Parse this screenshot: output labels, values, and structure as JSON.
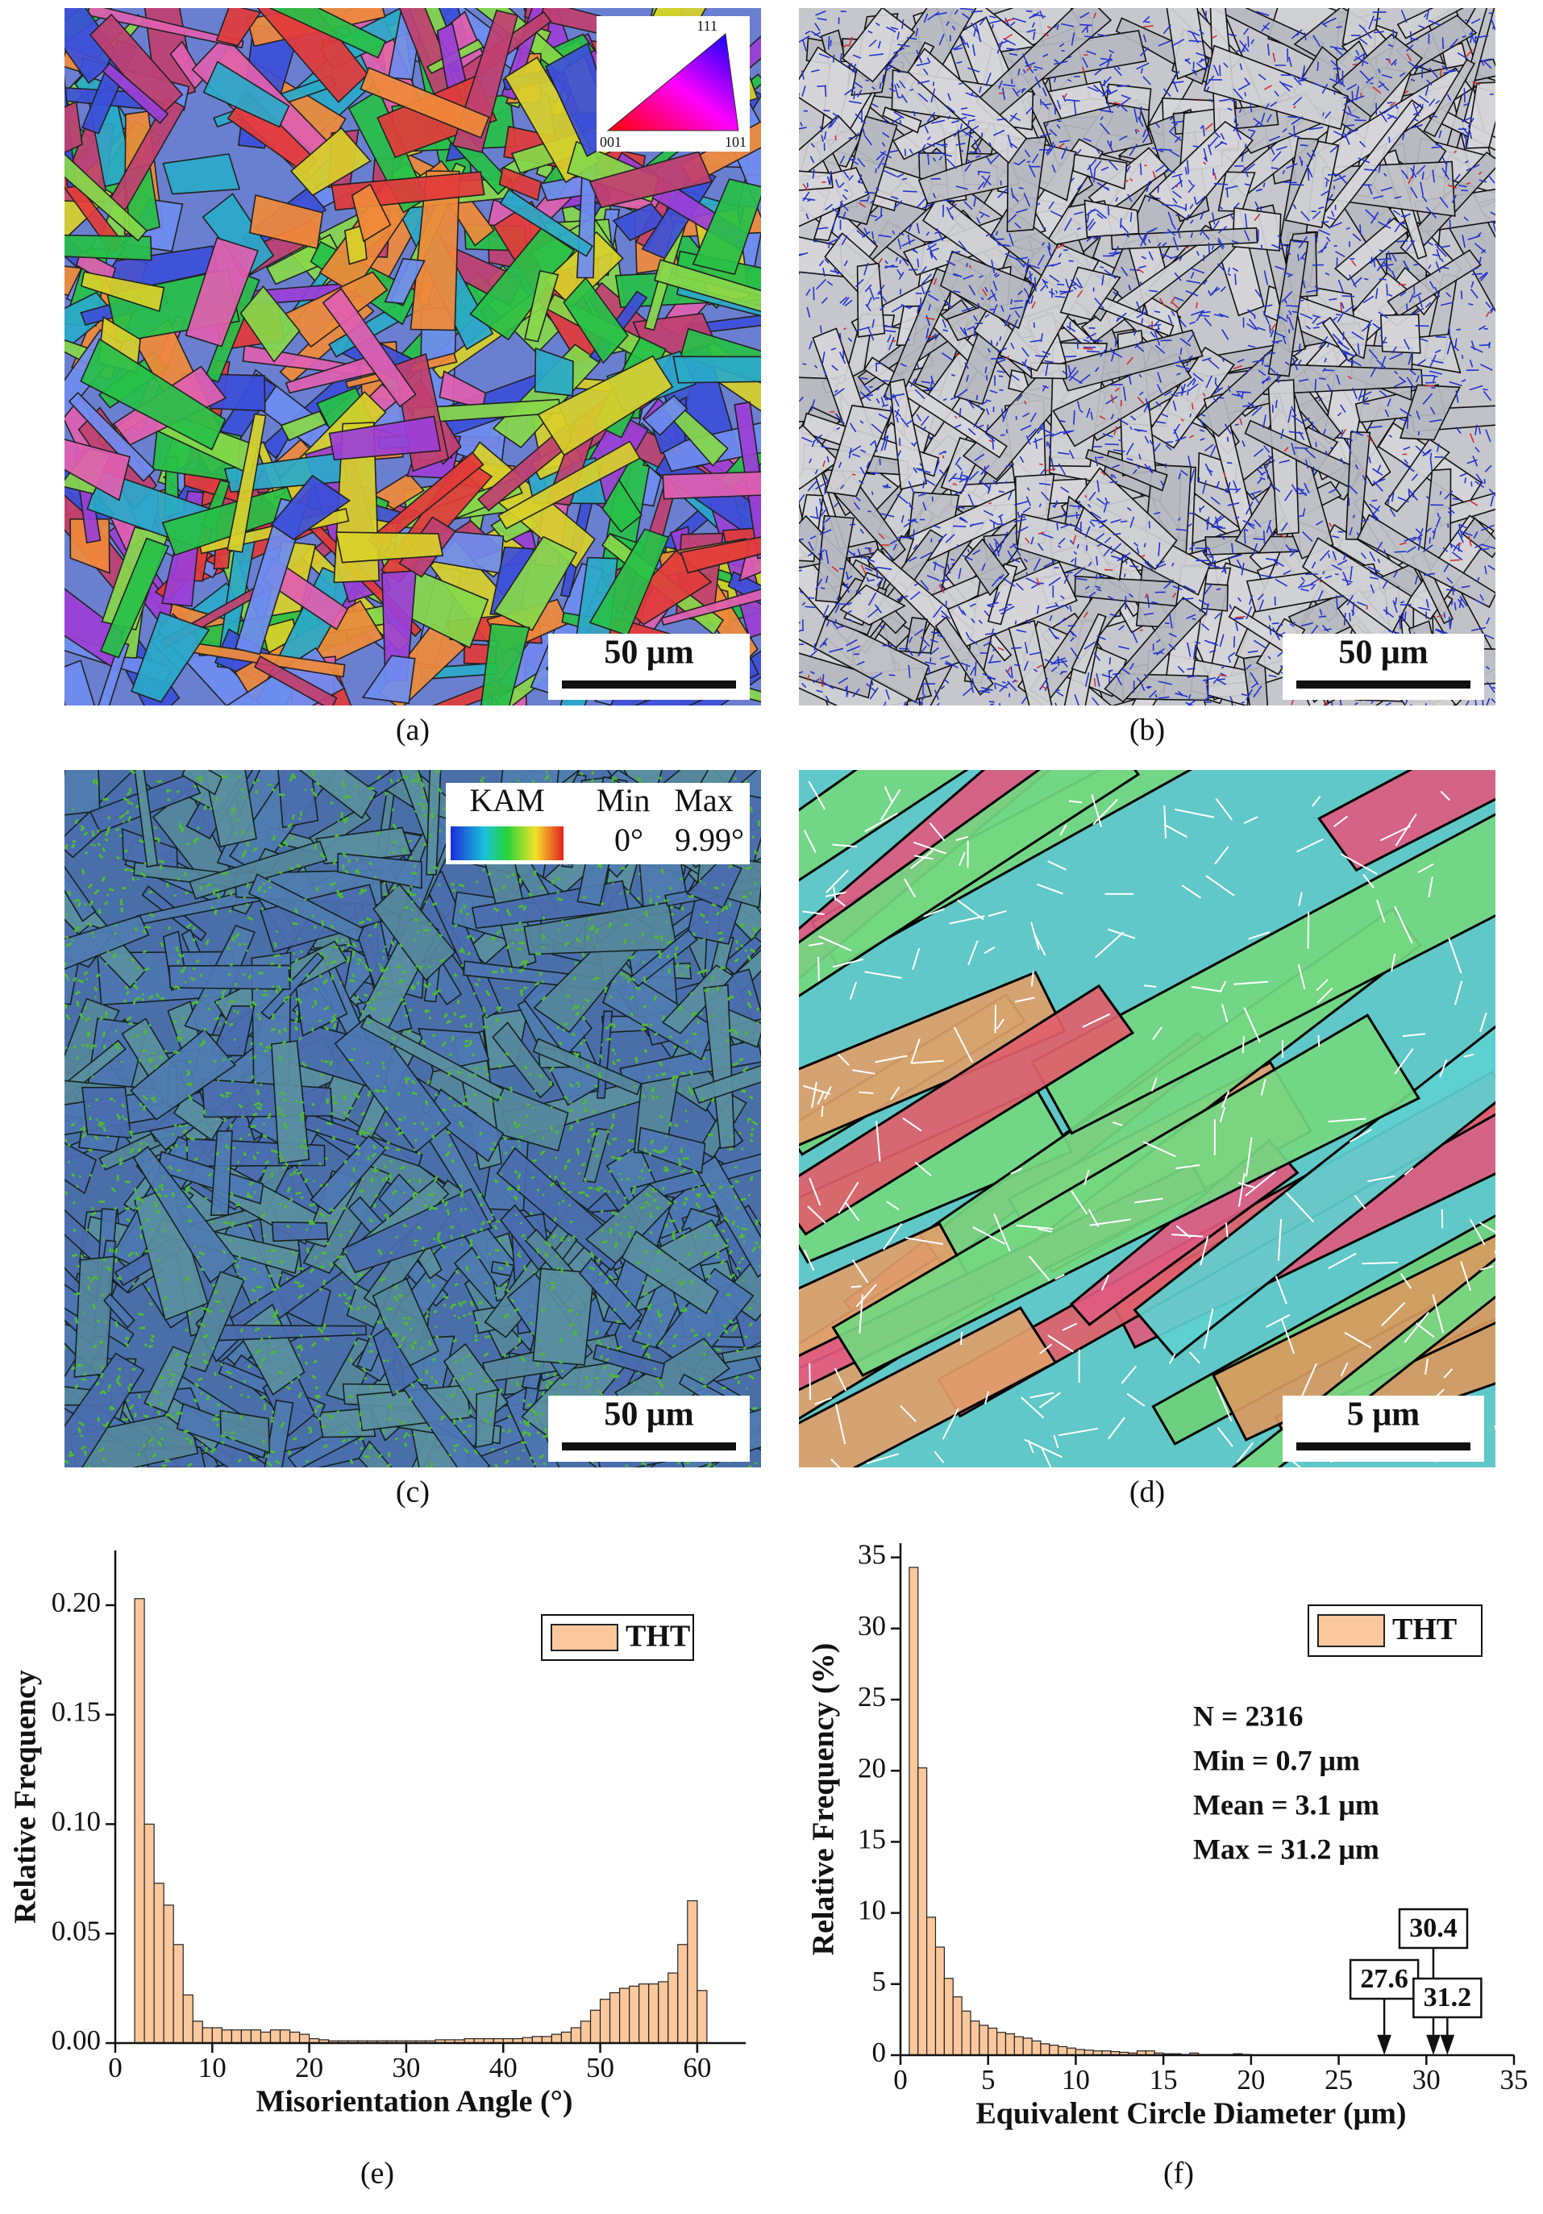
{
  "panels": [
    {
      "label": "(a)",
      "scale_bar": "50 μm",
      "ipf_legend": [
        "111",
        "001",
        "101"
      ]
    },
    {
      "label": "(b)",
      "scale_bar": "50 μm"
    },
    {
      "label": "(c)",
      "scale_bar": "50 μm",
      "kam_legend": {
        "title": "KAM",
        "min_label": "Min",
        "max_label": "Max",
        "min": "0°",
        "max": "9.99°"
      }
    },
    {
      "label": "(d)",
      "scale_bar": "5 μm"
    }
  ],
  "chart_data": [
    {
      "type": "histogram",
      "label": "(e)",
      "xlabel": "Misorientation Angle (°)",
      "ylabel": "Relative Frequency",
      "bins": [
        2,
        3,
        4,
        5,
        6,
        7,
        8,
        9,
        10,
        11,
        12,
        13,
        14,
        15,
        16,
        17,
        18,
        19,
        20,
        21,
        22,
        23,
        24,
        25,
        26,
        27,
        28,
        29,
        30,
        31,
        32,
        33,
        34,
        35,
        36,
        37,
        38,
        39,
        40,
        41,
        42,
        43,
        44,
        45,
        46,
        47,
        48,
        49,
        50,
        51,
        52,
        53,
        54,
        55,
        56,
        57,
        58,
        59,
        60,
        61
      ],
      "series": [
        {
          "name": "THT",
          "color": "#fac89c",
          "values": [
            0.203,
            0.1,
            0.073,
            0.063,
            0.045,
            0.022,
            0.01,
            0.007,
            0.007,
            0.006,
            0.006,
            0.006,
            0.006,
            0.005,
            0.006,
            0.006,
            0.005,
            0.004,
            0.002,
            0.0015,
            0.001,
            0.001,
            0.001,
            0.001,
            0.001,
            0.001,
            0.001,
            0.001,
            0.001,
            0.001,
            0.001,
            0.0015,
            0.0015,
            0.0015,
            0.002,
            0.002,
            0.002,
            0.002,
            0.002,
            0.002,
            0.0025,
            0.003,
            0.003,
            0.004,
            0.005,
            0.007,
            0.01,
            0.015,
            0.02,
            0.023,
            0.025,
            0.026,
            0.027,
            0.027,
            0.028,
            0.032,
            0.045,
            0.065,
            0.024
          ]
        }
      ],
      "xlim": [
        0,
        65
      ],
      "ylim": [
        0,
        0.225
      ],
      "xticks": [
        0,
        10,
        20,
        30,
        40,
        50,
        60
      ],
      "yticks": [
        {
          "value": 0,
          "label": "0.00"
        },
        {
          "value": 0.05,
          "label": "0.05"
        },
        {
          "value": 0.1,
          "label": "0.10"
        },
        {
          "value": 0.15,
          "label": "0.15"
        },
        {
          "value": 0.2,
          "label": "0.20"
        }
      ],
      "legend": "upper right"
    },
    {
      "type": "histogram",
      "label": "(f)",
      "xlabel": "Equivalent Circle Diameter (μm)",
      "ylabel": "Relative Frequency (%)",
      "bins": [
        0.5,
        1,
        1.5,
        2,
        2.5,
        3,
        3.5,
        4,
        4.5,
        5,
        5.5,
        6,
        6.5,
        7,
        7.5,
        8,
        8.5,
        9,
        9.5,
        10,
        10.5,
        11,
        11.5,
        12,
        12.5,
        13,
        13.5,
        14,
        14.5,
        15,
        15.5,
        16,
        16.5,
        17,
        17.5,
        18,
        18.5,
        19,
        19.5,
        20
      ],
      "series": [
        {
          "name": "THT",
          "color": "#fac89c",
          "values": [
            34.3,
            20.2,
            9.7,
            7.6,
            5.4,
            4.1,
            3.1,
            2.4,
            2.1,
            1.9,
            1.6,
            1.5,
            1.3,
            1.2,
            1.0,
            0.8,
            0.7,
            0.6,
            0.5,
            0.4,
            0.35,
            0.3,
            0.3,
            0.25,
            0.2,
            0.15,
            0.3,
            0.3,
            0.15,
            0.1,
            0.1,
            0.05,
            0.15,
            0.05,
            0.05,
            0.05,
            0.05,
            0.1,
            0.05
          ]
        }
      ],
      "xlim": [
        0,
        35
      ],
      "ylim": [
        0,
        36
      ],
      "xticks": [
        0,
        5,
        10,
        15,
        20,
        25,
        30,
        35
      ],
      "yticks": [
        0,
        5,
        10,
        15,
        20,
        25,
        30,
        35
      ],
      "legend": "upper right",
      "annotations": [
        "N = 2316",
        "Min = 0.7 μm",
        "Mean = 3.1 μm",
        "Max = 31.2 μm"
      ],
      "markers": [
        27.6,
        30.4,
        31.2
      ]
    }
  ]
}
